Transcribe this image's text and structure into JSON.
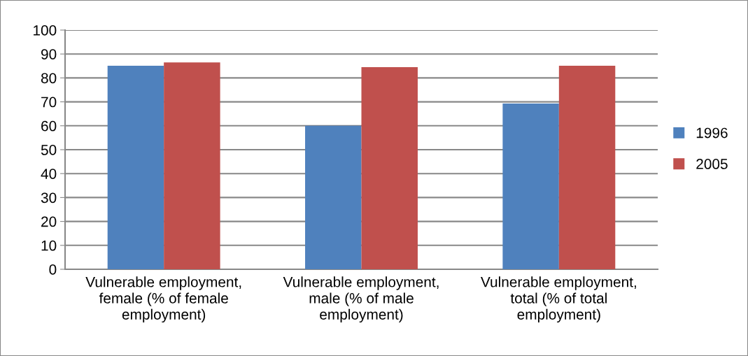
{
  "chart_data": {
    "type": "bar",
    "categories": [
      "Vulnerable employment, female (% of female employment)",
      "Vulnerable employment, male (% of male employment)",
      "Vulnerable employment, total (% of total employment)"
    ],
    "series": [
      {
        "name": "1996",
        "color": "#4f81bd",
        "values": [
          85.1,
          60,
          69.3
        ]
      },
      {
        "name": "2005",
        "color": "#c0504d",
        "values": [
          86.5,
          84.5,
          85.1
        ]
      }
    ],
    "ylim": [
      0,
      100
    ],
    "yticks": [
      0,
      10,
      20,
      30,
      40,
      50,
      60,
      70,
      80,
      90,
      100
    ],
    "grid": "y",
    "legend": "right"
  }
}
